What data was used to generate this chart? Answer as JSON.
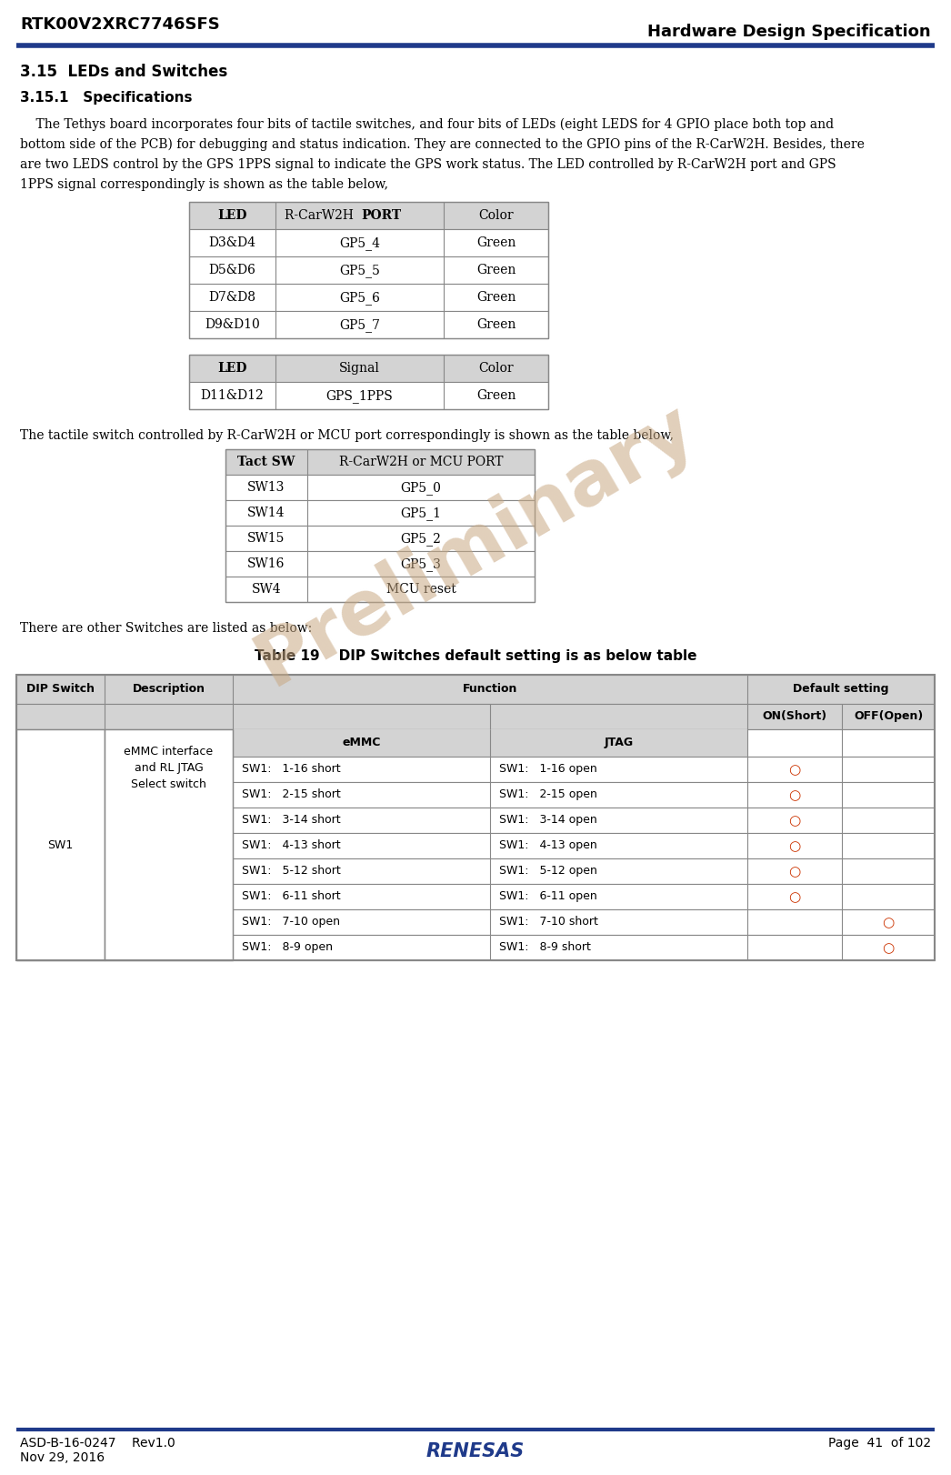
{
  "title_left": "RTK00V2XRC7746SFS",
  "title_right": "Hardware Design Specification",
  "header_line_color": "#1F3A8A",
  "footer_line_color": "#1F3A8A",
  "footer_left1": "ASD-B-16-0247    Rev1.0",
  "footer_left2": "Nov 29, 2016",
  "footer_right": "Page  41  of 102",
  "section_title": "3.15  LEDs and Switches",
  "subsection_title": "3.15.1   Specifications",
  "body_text1_lines": [
    "    The Tethys board incorporates four bits of tactile switches, and four bits of LEDs (eight LEDS for 4 GPIO place both top and",
    "bottom side of the PCB) for debugging and status indication. They are connected to the GPIO pins of the R-CarW2H. Besides, there",
    "are two LEDS control by the GPS 1PPS signal to indicate the GPS work status. The LED controlled by R-CarW2H port and GPS",
    "1PPS signal correspondingly is shown as the table below,"
  ],
  "body_text2": "The tactile switch controlled by R-CarW2H or MCU port correspondingly is shown as the table below,",
  "body_text3": "There are other Switches are listed as below:",
  "table19_title": "Table 19    DIP Switches default setting is as below table",
  "led_table1_rows": [
    [
      "D3&D4",
      "GP5_4",
      "Green"
    ],
    [
      "D5&D6",
      "GP5_5",
      "Green"
    ],
    [
      "D7&D8",
      "GP5_6",
      "Green"
    ],
    [
      "D9&D10",
      "GP5_7",
      "Green"
    ]
  ],
  "led_table2_rows": [
    [
      "D11&D12",
      "GPS_1PPS",
      "Green"
    ]
  ],
  "sw_table_rows": [
    [
      "SW13",
      "GP5_0"
    ],
    [
      "SW14",
      "GP5_1"
    ],
    [
      "SW15",
      "GP5_2"
    ],
    [
      "SW16",
      "GP5_3"
    ],
    [
      "SW4",
      "MCU reset"
    ]
  ],
  "dip_sw_data": [
    [
      "SW1:   1-16 short",
      "SW1:   1-16 open",
      true,
      false
    ],
    [
      "SW1:   2-15 short",
      "SW1:   2-15 open",
      true,
      false
    ],
    [
      "SW1:   3-14 short",
      "SW1:   3-14 open",
      true,
      false
    ],
    [
      "SW1:   4-13 short",
      "SW1:   4-13 open",
      true,
      false
    ],
    [
      "SW1:   5-12 short",
      "SW1:   5-12 open",
      true,
      false
    ],
    [
      "SW1:   6-11 short",
      "SW1:   6-11 open",
      true,
      false
    ],
    [
      "SW1:   7-10 open",
      "SW1:   7-10 short",
      false,
      true
    ],
    [
      "SW1:   8-9 open",
      "SW1:   8-9 short",
      false,
      true
    ]
  ],
  "preliminary_color": "#C8A882",
  "table_header_bg": "#D3D3D3",
  "table_border_color": "#888888",
  "text_color": "#000000",
  "bg_color": "#FFFFFF",
  "circle_color": "#CC3300"
}
